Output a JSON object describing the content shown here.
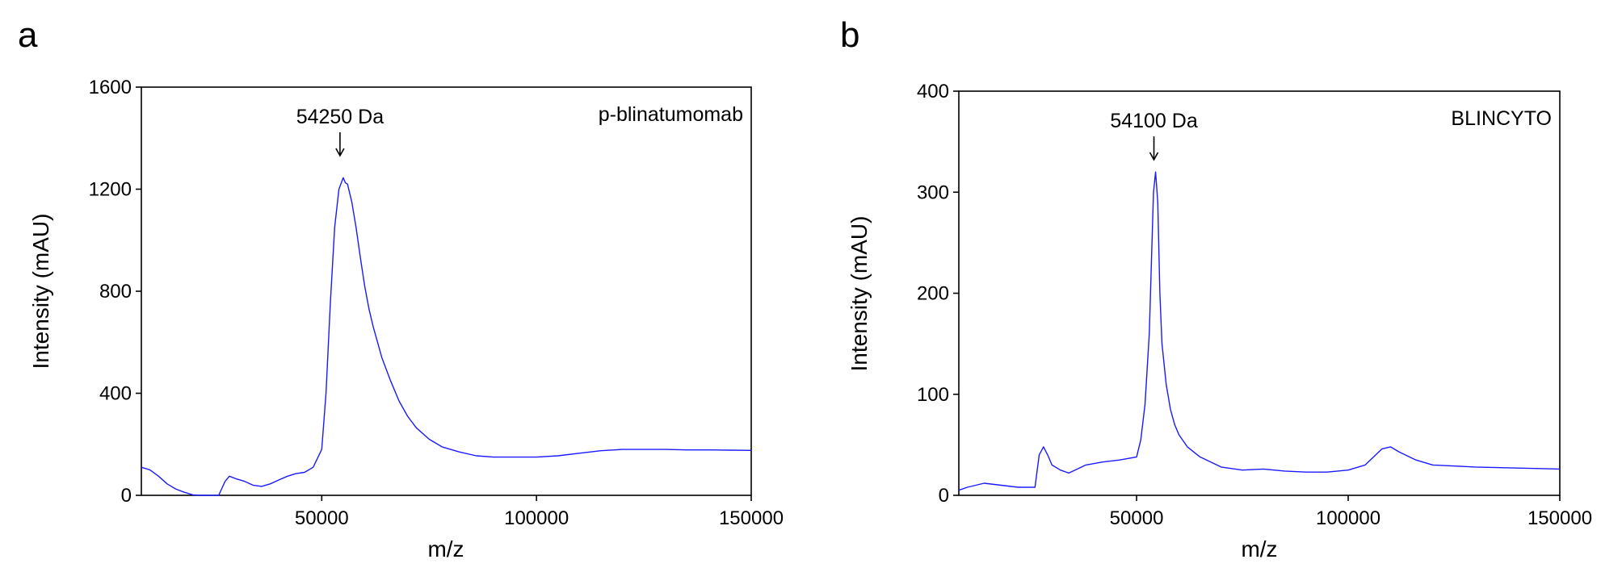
{
  "chart_data": [
    {
      "type": "line",
      "panel": "a",
      "xlabel": "m/z",
      "ylabel": "Intensity (mAU)",
      "sample_label": "p-blinatumomab",
      "xlim": [
        8000,
        150000
      ],
      "ylim": [
        0,
        1600
      ],
      "x_ticks": [
        50000,
        100000,
        150000
      ],
      "y_ticks": [
        0,
        400,
        800,
        1200,
        1600
      ],
      "annotation": {
        "text": "54250 Da",
        "x": 54250
      },
      "color": "#1a1aff",
      "grid": false,
      "series": [
        {
          "x": [
            8000,
            10000,
            12000,
            14000,
            16000,
            18000,
            20000,
            22000,
            24000,
            26000,
            27500,
            28500,
            30000,
            32000,
            34000,
            36000,
            38000,
            40000,
            42000,
            44000,
            46000,
            48000,
            50000,
            51000,
            52000,
            53000,
            54000,
            55000,
            55500,
            56000,
            57000,
            58000,
            59000,
            60000,
            61000,
            62000,
            64000,
            66000,
            68000,
            70000,
            72000,
            75000,
            78000,
            82000,
            86000,
            90000,
            95000,
            100000,
            105000,
            110000,
            115000,
            120000,
            125000,
            130000,
            135000,
            140000,
            145000,
            150000
          ],
          "y": [
            110,
            100,
            75,
            45,
            25,
            12,
            2,
            0,
            0,
            0,
            55,
            75,
            65,
            55,
            40,
            35,
            45,
            60,
            75,
            85,
            90,
            110,
            180,
            400,
            750,
            1050,
            1200,
            1245,
            1225,
            1220,
            1150,
            1050,
            930,
            820,
            730,
            660,
            540,
            450,
            370,
            310,
            265,
            220,
            190,
            170,
            155,
            150,
            150,
            150,
            155,
            165,
            175,
            180,
            180,
            180,
            178,
            178,
            177,
            176
          ]
        }
      ]
    },
    {
      "type": "line",
      "panel": "b",
      "xlabel": "m/z",
      "ylabel": "Intensity (mAU)",
      "sample_label": "BLINCYTO",
      "xlim": [
        8000,
        150000
      ],
      "ylim": [
        0,
        400
      ],
      "x_ticks": [
        50000,
        100000,
        150000
      ],
      "y_ticks": [
        0,
        100,
        200,
        300,
        400
      ],
      "annotation": {
        "text": "54100 Da",
        "x": 54100
      },
      "color": "#1a1aff",
      "grid": false,
      "series": [
        {
          "x": [
            8000,
            10000,
            14000,
            18000,
            22000,
            26000,
            27000,
            28000,
            29000,
            30000,
            32000,
            34000,
            38000,
            42000,
            46000,
            50000,
            51000,
            52000,
            53000,
            53500,
            54000,
            54500,
            55000,
            55500,
            56000,
            57000,
            58000,
            59000,
            60000,
            62000,
            65000,
            70000,
            75000,
            80000,
            85000,
            90000,
            95000,
            100000,
            104000,
            106000,
            108000,
            110000,
            112000,
            116000,
            120000,
            130000,
            140000,
            150000
          ],
          "y": [
            5,
            8,
            12,
            10,
            8,
            8,
            40,
            48,
            40,
            30,
            25,
            22,
            30,
            33,
            35,
            38,
            55,
            90,
            160,
            230,
            300,
            320,
            290,
            200,
            150,
            110,
            85,
            70,
            60,
            48,
            38,
            28,
            25,
            26,
            24,
            23,
            23,
            25,
            30,
            38,
            46,
            48,
            43,
            35,
            30,
            28,
            27,
            26
          ]
        }
      ]
    }
  ]
}
